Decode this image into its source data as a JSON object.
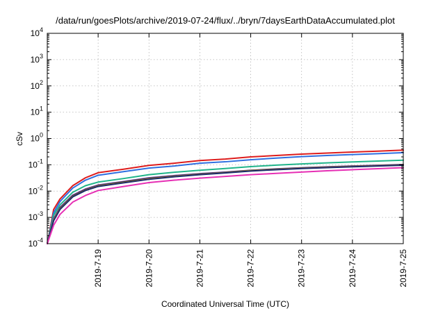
{
  "chart_data": {
    "type": "line",
    "title": "/data/run/goesPlots/archive/2019-07-24/flux/../bryn/7daysEarthDataAccumulated.plot",
    "xlabel": "Coordinated Universal Time (UTC)",
    "ylabel": "cSv",
    "yscale": "log",
    "ylim": [
      0.0001,
      10000
    ],
    "y_ticks": [
      {
        "base": "10",
        "exp": "-4",
        "value": 0.0001
      },
      {
        "base": "10",
        "exp": "-3",
        "value": 0.001
      },
      {
        "base": "10",
        "exp": "-2",
        "value": 0.01
      },
      {
        "base": "10",
        "exp": "-1",
        "value": 0.1
      },
      {
        "base": "10",
        "exp": "0",
        "value": 1
      },
      {
        "base": "10",
        "exp": "1",
        "value": 10
      },
      {
        "base": "10",
        "exp": "2",
        "value": 100
      },
      {
        "base": "10",
        "exp": "3",
        "value": 1000
      },
      {
        "base": "10",
        "exp": "4",
        "value": 10000
      }
    ],
    "xlim": [
      "2019-07-18",
      "2019-07-25"
    ],
    "x_ticks": [
      "2019-7-19",
      "2019-7-20",
      "2019-7-21",
      "2019-7-22",
      "2019-7-23",
      "2019-7-24",
      "2019-7-25"
    ],
    "grid": true,
    "x": [
      "2019-07-18 00:00",
      "2019-07-18 03:00",
      "2019-07-18 06:00",
      "2019-07-18 12:00",
      "2019-07-18 18:00",
      "2019-07-19 00:00",
      "2019-07-19 12:00",
      "2019-07-20 00:00",
      "2019-07-20 12:00",
      "2019-07-21 00:00",
      "2019-07-21 12:00",
      "2019-07-22 00:00",
      "2019-07-22 12:00",
      "2019-07-23 00:00",
      "2019-07-23 12:00",
      "2019-07-24 00:00",
      "2019-07-24 12:00",
      "2019-07-25 00:00"
    ],
    "series": [
      {
        "color": "#dd1c1c",
        "values": [
          0.0001,
          0.002,
          0.005,
          0.016,
          0.032,
          0.05,
          0.068,
          0.095,
          0.115,
          0.145,
          0.165,
          0.2,
          0.225,
          0.255,
          0.28,
          0.305,
          0.33,
          0.36
        ]
      },
      {
        "color": "#2f6fe0",
        "values": [
          0.0001,
          0.0015,
          0.004,
          0.013,
          0.026,
          0.04,
          0.055,
          0.075,
          0.09,
          0.115,
          0.13,
          0.155,
          0.18,
          0.205,
          0.225,
          0.245,
          0.265,
          0.29
        ]
      },
      {
        "color": "#20b48a",
        "values": [
          0.0001,
          0.0012,
          0.003,
          0.009,
          0.016,
          0.022,
          0.03,
          0.042,
          0.052,
          0.062,
          0.072,
          0.085,
          0.097,
          0.108,
          0.118,
          0.128,
          0.139,
          0.15
        ]
      },
      {
        "color": "#6a3d9a",
        "values": [
          0.0001,
          0.0009,
          0.0024,
          0.007,
          0.012,
          0.017,
          0.023,
          0.032,
          0.039,
          0.046,
          0.053,
          0.062,
          0.07,
          0.077,
          0.084,
          0.09,
          0.096,
          0.102
        ]
      },
      {
        "color": "#2a2a2a",
        "values": [
          0.0001,
          0.0008,
          0.0022,
          0.0065,
          0.0112,
          0.016,
          0.022,
          0.03,
          0.037,
          0.044,
          0.051,
          0.061,
          0.068,
          0.075,
          0.081,
          0.087,
          0.093,
          0.1
        ]
      },
      {
        "color": "#b8962e",
        "values": [
          0.0001,
          0.0008,
          0.0021,
          0.0062,
          0.0108,
          0.0155,
          0.021,
          0.029,
          0.036,
          0.043,
          0.05,
          0.06,
          0.067,
          0.074,
          0.08,
          0.086,
          0.092,
          0.098
        ]
      },
      {
        "color": "#1a2a6c",
        "values": [
          0.0001,
          0.00075,
          0.002,
          0.006,
          0.0105,
          0.015,
          0.0205,
          0.028,
          0.035,
          0.042,
          0.049,
          0.058,
          0.065,
          0.072,
          0.078,
          0.084,
          0.09,
          0.096
        ]
      },
      {
        "color": "#e62fb4",
        "values": [
          0.0001,
          0.0005,
          0.0013,
          0.0038,
          0.0068,
          0.0105,
          0.015,
          0.021,
          0.026,
          0.031,
          0.036,
          0.042,
          0.047,
          0.053,
          0.059,
          0.065,
          0.071,
          0.078
        ]
      }
    ]
  }
}
